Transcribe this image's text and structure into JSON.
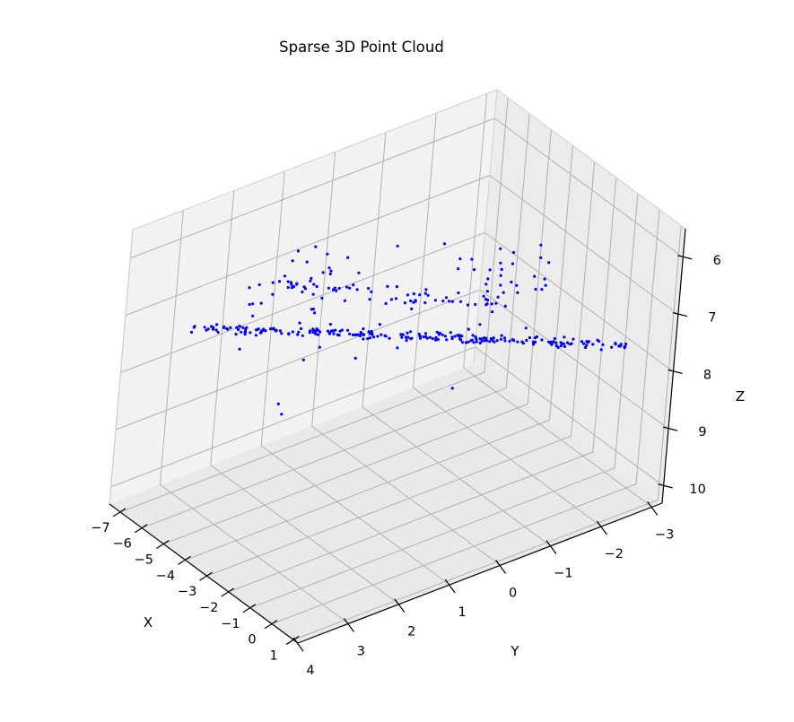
{
  "chart_data": {
    "type": "scatter",
    "projection": "3d",
    "title": "Sparse 3D Point Cloud",
    "xlabel": "X",
    "ylabel": "Y",
    "zlabel": "Z",
    "xlim": [
      -7.5,
      1.2
    ],
    "ylim": [
      -3.2,
      4.0
    ],
    "zlim": [
      5.5,
      10.3
    ],
    "zaxis_inverted": true,
    "xticks": [
      -7,
      -6,
      -5,
      -4,
      -3,
      -2,
      -1,
      0,
      1
    ],
    "yticks": [
      4,
      3,
      2,
      1,
      0,
      -1,
      -2,
      -3
    ],
    "zticks": [
      6,
      7,
      8,
      9,
      10
    ],
    "point_color": "#0000ff",
    "pane_color": "#f2f2f2",
    "grid": true,
    "series": [
      {
        "clusters": [
          {
            "role": "main-line",
            "from": [
              -6.6,
              3.0,
              7.3
            ],
            "to": [
              0.6,
              -2.6,
              7.5
            ],
            "count": 230,
            "jitter": 0.06
          },
          {
            "role": "upper-branch",
            "from": [
              -4.3,
              2.4,
              6.1
            ],
            "to": [
              -1.2,
              -0.8,
              6.7
            ],
            "count": 55,
            "jitter": 0.1
          },
          {
            "role": "upper-blob",
            "center": [
              -4.0,
              2.1,
              6.2
            ],
            "spread": [
              0.5,
              0.5,
              0.25
            ],
            "count": 35
          },
          {
            "role": "right-group",
            "center": [
              -1.6,
              -0.9,
              6.4
            ],
            "spread": [
              0.4,
              0.5,
              0.35
            ],
            "count": 30
          },
          {
            "role": "scattered",
            "center": [
              -2.8,
              0.8,
              7.0
            ],
            "spread": [
              1.5,
              1.5,
              0.6
            ],
            "count": 22
          }
        ]
      }
    ]
  }
}
